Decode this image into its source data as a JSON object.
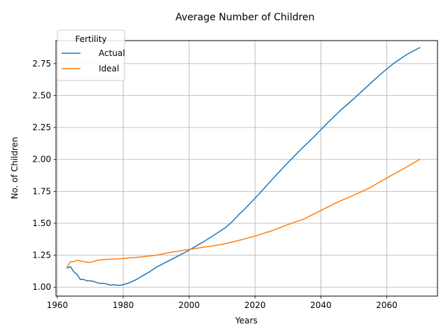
{
  "chart_data": {
    "type": "line",
    "title": "Average Number of Children",
    "xlabel": "Years",
    "ylabel": "No. of Children",
    "xlim": [
      1959.6,
      2075.4
    ],
    "ylim": [
      0.93,
      2.93
    ],
    "xticks": [
      1960,
      1980,
      2000,
      2020,
      2040,
      2060
    ],
    "xtick_labels": [
      "1960",
      "1980",
      "2000",
      "2020",
      "2040",
      "2060"
    ],
    "yticks": [
      1.0,
      1.25,
      1.5,
      1.75,
      2.0,
      2.25,
      2.5,
      2.75
    ],
    "ytick_labels": [
      "1.00",
      "1.25",
      "1.50",
      "1.75",
      "2.00",
      "2.25",
      "2.50",
      "2.75"
    ],
    "grid": true,
    "legend": {
      "title": "Fertility",
      "placement": "top-left"
    },
    "series": [
      {
        "name": "Actual",
        "color": "#1f77b4",
        "x": [
          1963,
          1964,
          1965,
          1966,
          1967,
          1968,
          1969,
          1970,
          1971,
          1972,
          1973,
          1974,
          1975,
          1976,
          1977,
          1978,
          1979,
          1980,
          1982,
          1984,
          1986,
          1988,
          1990,
          1993,
          1996,
          1999,
          2002,
          2005,
          2008,
          2011,
          2013,
          2015,
          2017,
          2020,
          2023,
          2026,
          2030,
          2034,
          2038,
          2042,
          2046,
          2050,
          2054,
          2058,
          2062,
          2066,
          2070
        ],
        "y": [
          1.15,
          1.16,
          1.12,
          1.1,
          1.06,
          1.06,
          1.05,
          1.05,
          1.045,
          1.035,
          1.03,
          1.03,
          1.025,
          1.015,
          1.02,
          1.015,
          1.015,
          1.02,
          1.035,
          1.06,
          1.09,
          1.12,
          1.155,
          1.195,
          1.235,
          1.275,
          1.32,
          1.365,
          1.415,
          1.465,
          1.51,
          1.565,
          1.615,
          1.695,
          1.78,
          1.865,
          1.975,
          2.08,
          2.18,
          2.285,
          2.385,
          2.475,
          2.57,
          2.665,
          2.75,
          2.82,
          2.875
        ]
      },
      {
        "name": "Ideal",
        "color": "#ff7f0e",
        "x": [
          1963,
          1964,
          1965,
          1966,
          1967,
          1968,
          1969,
          1970,
          1971,
          1972,
          1974,
          1976,
          1978,
          1980,
          1985,
          1990,
          1995,
          2000,
          2005,
          2010,
          2015,
          2020,
          2025,
          2030,
          2035,
          2040,
          2045,
          2050,
          2055,
          2060,
          2065,
          2070
        ],
        "y": [
          1.16,
          1.2,
          1.2,
          1.21,
          1.205,
          1.2,
          1.195,
          1.195,
          1.2,
          1.21,
          1.215,
          1.22,
          1.22,
          1.225,
          1.235,
          1.25,
          1.275,
          1.295,
          1.315,
          1.335,
          1.365,
          1.4,
          1.44,
          1.49,
          1.535,
          1.6,
          1.665,
          1.72,
          1.78,
          1.855,
          1.925,
          2.0
        ]
      }
    ]
  }
}
